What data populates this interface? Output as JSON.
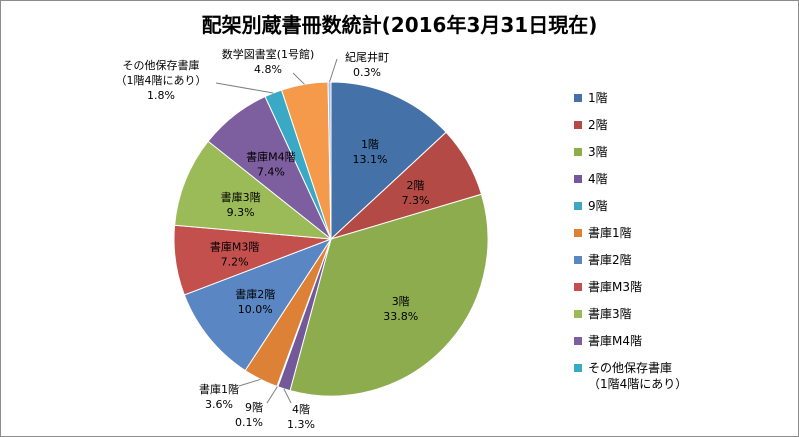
{
  "chart_data": {
    "type": "pie",
    "title": "配架別蔵書冊数統計(2016年3月31日現在)",
    "legend_position": "right",
    "slices": [
      {
        "label": "1階",
        "value": 13.1,
        "value_label": "13.1%",
        "color": "#4472a8"
      },
      {
        "label": "2階",
        "value": 7.3,
        "value_label": "7.3%",
        "color": "#b34a45"
      },
      {
        "label": "3階",
        "value": 33.8,
        "value_label": "33.8%",
        "color": "#8dac4d"
      },
      {
        "label": "4階",
        "value": 1.3,
        "value_label": "1.3%",
        "color": "#73589a"
      },
      {
        "label": "9階",
        "value": 0.1,
        "value_label": "0.1%",
        "color": "#3fa7c0"
      },
      {
        "label": "書庫1階",
        "value": 3.6,
        "value_label": "3.6%",
        "color": "#dd8137"
      },
      {
        "label": "書庫2階",
        "value": 10.0,
        "value_label": "10.0%",
        "color": "#5a86c4"
      },
      {
        "label": "書庫M3階",
        "value": 7.2,
        "value_label": "7.2%",
        "color": "#c4504e"
      },
      {
        "label": "書庫3階",
        "value": 9.3,
        "value_label": "9.3%",
        "color": "#9bbb59"
      },
      {
        "label": "書庫M4階",
        "value": 7.4,
        "value_label": "7.4%",
        "color": "#7d5e9f"
      },
      {
        "label": "その他保存書庫\n（1階4階にあり）",
        "value": 1.8,
        "value_label": "1.8%",
        "color": "#3aa9c6"
      },
      {
        "label": "数学図書室(1号館)",
        "value": 4.8,
        "value_label": "4.8%",
        "color": "#f59a4a"
      },
      {
        "label": "紀尾井町",
        "value": 0.3,
        "value_label": "0.3%",
        "color": "#a6bddf"
      }
    ],
    "legend_entries": [
      "1階",
      "2階",
      "3階",
      "4階",
      "9階",
      "書庫1階",
      "書庫2階",
      "書庫M3階",
      "書庫3階",
      "書庫M4階",
      "その他保存書庫\n（1階4階にあり）"
    ]
  }
}
